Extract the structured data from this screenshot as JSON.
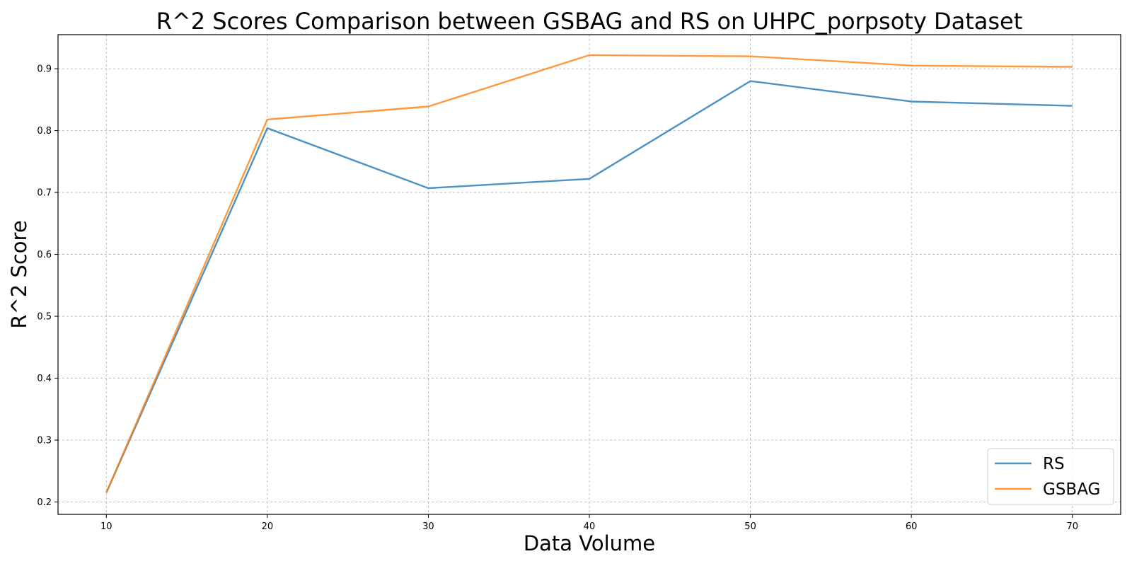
{
  "chart_data": {
    "type": "line",
    "title": "R^2 Scores Comparison between GSBAG and RS on UHPC_porpsoty Dataset",
    "xlabel": "Data Volume",
    "ylabel": "R^2 Score",
    "x": [
      10,
      20,
      30,
      40,
      50,
      60,
      70
    ],
    "xlim": [
      7,
      73
    ],
    "ylim": [
      0.18,
      0.955
    ],
    "xticks": [
      10,
      20,
      30,
      40,
      50,
      60,
      70
    ],
    "yticks": [
      0.2,
      0.3,
      0.4,
      0.5,
      0.6,
      0.7,
      0.8,
      0.9
    ],
    "ytick_labels": [
      "0.2",
      "0.3",
      "0.4",
      "0.5",
      "0.6",
      "0.7",
      "0.8",
      "0.9"
    ],
    "grid": true,
    "legend_position": "lower right",
    "series": [
      {
        "name": "RS",
        "color": "#1f77b4",
        "values": [
          0.215,
          0.804,
          0.707,
          0.722,
          0.88,
          0.847,
          0.84
        ]
      },
      {
        "name": "GSBAG",
        "color": "#ff7f0e",
        "values": [
          0.215,
          0.818,
          0.839,
          0.922,
          0.92,
          0.905,
          0.903
        ]
      }
    ]
  }
}
